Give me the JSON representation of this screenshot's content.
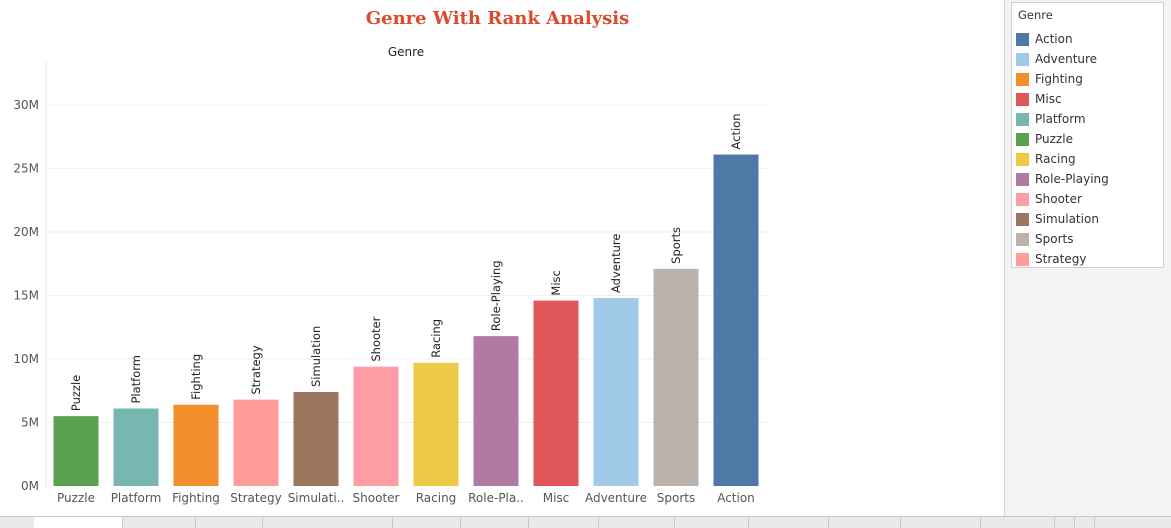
{
  "chart_data": {
    "type": "bar",
    "title": "Genre With Rank Analysis",
    "column_header": "Genre",
    "categories": [
      "Puzzle",
      "Platform",
      "Fighting",
      "Strategy",
      "Simulation",
      "Shooter",
      "Racing",
      "Role-Playing",
      "Misc",
      "Adventure",
      "Sports",
      "Action"
    ],
    "category_tick_labels": [
      "Puzzle",
      "Platform",
      "Fighting",
      "Strategy",
      "Simulati..",
      "Shooter",
      "Racing",
      "Role-Pla..",
      "Misc",
      "Adventure",
      "Sports",
      "Action"
    ],
    "values": [
      5.5,
      6.1,
      6.4,
      6.8,
      7.4,
      9.4,
      9.7,
      11.8,
      14.6,
      14.8,
      17.1,
      26.1
    ],
    "value_unit": "M",
    "ylim": [
      0,
      33
    ],
    "yticks": [
      0,
      5,
      10,
      15,
      20,
      25,
      30
    ],
    "ytick_labels": [
      "0M",
      "5M",
      "10M",
      "15M",
      "20M",
      "25M",
      "30M"
    ],
    "xlabel": "",
    "ylabel": "",
    "grid": true,
    "legend": {
      "title": "Genre",
      "position": "right",
      "items": [
        {
          "label": "Action",
          "color": "#4e79a7"
        },
        {
          "label": "Adventure",
          "color": "#a0cbe8"
        },
        {
          "label": "Fighting",
          "color": "#f28e2b"
        },
        {
          "label": "Misc",
          "color": "#e15759"
        },
        {
          "label": "Platform",
          "color": "#76b7b2"
        },
        {
          "label": "Puzzle",
          "color": "#59a14f"
        },
        {
          "label": "Racing",
          "color": "#edc948"
        },
        {
          "label": "Role-Playing",
          "color": "#b07aa1"
        },
        {
          "label": "Shooter",
          "color": "#ff9da7"
        },
        {
          "label": "Simulation",
          "color": "#9c755f"
        },
        {
          "label": "Sports",
          "color": "#bab0ac"
        },
        {
          "label": "Strategy",
          "color": "#ff9d9a"
        }
      ]
    }
  }
}
